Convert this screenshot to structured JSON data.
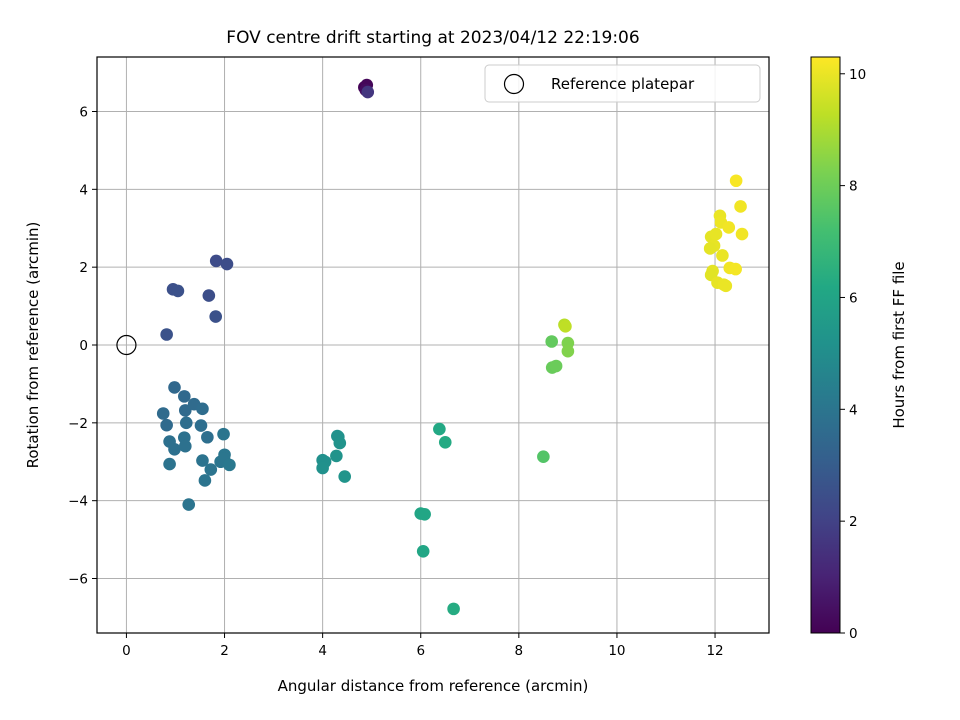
{
  "chart_data": {
    "type": "scatter",
    "title": "FOV centre drift starting at 2023/04/12 22:19:06",
    "xlabel": "Angular distance from reference (arcmin)",
    "ylabel": "Rotation from reference (arcmin)",
    "xlim": [
      -0.6,
      13.1
    ],
    "ylim": [
      -7.4,
      7.4
    ],
    "xticks": [
      0,
      2,
      4,
      6,
      8,
      10,
      12
    ],
    "yticks": [
      -6,
      -4,
      -2,
      0,
      2,
      4,
      6
    ],
    "grid": true,
    "legend": {
      "position": "top-right",
      "entries": [
        "Reference platepar"
      ]
    },
    "reference_point": {
      "x": 0,
      "y": 0,
      "label": "Reference platepar"
    },
    "colorbar": {
      "label": "Hours from first FF file",
      "range": [
        0,
        10.3
      ],
      "ticks": [
        0,
        2,
        4,
        6,
        8,
        10
      ],
      "colormap": "viridis"
    },
    "points": [
      {
        "x": 4.85,
        "y": 6.62,
        "h": 0.05
      },
      {
        "x": 4.9,
        "y": 6.68,
        "h": 0.15
      },
      {
        "x": 4.88,
        "y": 6.55,
        "h": 0.3
      },
      {
        "x": 4.92,
        "y": 6.5,
        "h": 1.6
      },
      {
        "x": 0.82,
        "y": 0.27,
        "h": 2.6
      },
      {
        "x": 0.95,
        "y": 1.43,
        "h": 2.5
      },
      {
        "x": 1.05,
        "y": 1.39,
        "h": 2.55
      },
      {
        "x": 1.68,
        "y": 1.27,
        "h": 2.45
      },
      {
        "x": 1.82,
        "y": 0.73,
        "h": 2.55
      },
      {
        "x": 1.83,
        "y": 2.16,
        "h": 2.35
      },
      {
        "x": 2.05,
        "y": 2.08,
        "h": 2.4
      },
      {
        "x": 0.98,
        "y": -1.09,
        "h": 3.45
      },
      {
        "x": 0.75,
        "y": -1.76,
        "h": 3.6
      },
      {
        "x": 0.82,
        "y": -2.06,
        "h": 3.55
      },
      {
        "x": 1.18,
        "y": -1.32,
        "h": 3.5
      },
      {
        "x": 1.2,
        "y": -1.68,
        "h": 3.55
      },
      {
        "x": 1.38,
        "y": -1.52,
        "h": 3.6
      },
      {
        "x": 1.55,
        "y": -1.64,
        "h": 3.65
      },
      {
        "x": 1.22,
        "y": -2.0,
        "h": 3.7
      },
      {
        "x": 1.52,
        "y": -2.07,
        "h": 3.7
      },
      {
        "x": 1.65,
        "y": -2.37,
        "h": 3.75
      },
      {
        "x": 0.88,
        "y": -2.48,
        "h": 3.8
      },
      {
        "x": 0.98,
        "y": -2.68,
        "h": 3.8
      },
      {
        "x": 1.18,
        "y": -2.38,
        "h": 3.85
      },
      {
        "x": 1.2,
        "y": -2.6,
        "h": 3.85
      },
      {
        "x": 0.88,
        "y": -3.06,
        "h": 3.9
      },
      {
        "x": 1.55,
        "y": -2.97,
        "h": 3.9
      },
      {
        "x": 1.72,
        "y": -3.2,
        "h": 3.95
      },
      {
        "x": 1.6,
        "y": -3.48,
        "h": 3.95
      },
      {
        "x": 1.92,
        "y": -3.0,
        "h": 4.0
      },
      {
        "x": 1.98,
        "y": -2.29,
        "h": 4.0
      },
      {
        "x": 2.0,
        "y": -2.82,
        "h": 4.05
      },
      {
        "x": 1.99,
        "y": -2.92,
        "h": 4.05
      },
      {
        "x": 2.1,
        "y": -3.08,
        "h": 4.1
      },
      {
        "x": 1.27,
        "y": -4.1,
        "h": 3.95
      },
      {
        "x": 4.0,
        "y": -2.96,
        "h": 5.1
      },
      {
        "x": 4.05,
        "y": -3.0,
        "h": 5.1
      },
      {
        "x": 4.0,
        "y": -3.16,
        "h": 5.15
      },
      {
        "x": 4.3,
        "y": -2.34,
        "h": 5.2
      },
      {
        "x": 4.32,
        "y": -2.36,
        "h": 5.2
      },
      {
        "x": 4.35,
        "y": -2.52,
        "h": 5.25
      },
      {
        "x": 4.28,
        "y": -2.85,
        "h": 5.25
      },
      {
        "x": 4.45,
        "y": -3.38,
        "h": 5.3
      },
      {
        "x": 6.38,
        "y": -2.16,
        "h": 6.2
      },
      {
        "x": 6.5,
        "y": -2.5,
        "h": 6.25
      },
      {
        "x": 6.0,
        "y": -4.33,
        "h": 6.05
      },
      {
        "x": 6.08,
        "y": -4.35,
        "h": 6.1
      },
      {
        "x": 6.05,
        "y": -5.3,
        "h": 6.1
      },
      {
        "x": 6.67,
        "y": -6.78,
        "h": 6.3
      },
      {
        "x": 8.5,
        "y": -2.87,
        "h": 7.5
      },
      {
        "x": 8.67,
        "y": 0.09,
        "h": 7.8
      },
      {
        "x": 8.68,
        "y": -0.58,
        "h": 7.9
      },
      {
        "x": 8.76,
        "y": -0.54,
        "h": 7.95
      },
      {
        "x": 8.93,
        "y": 0.52,
        "h": 9.2
      },
      {
        "x": 8.95,
        "y": 0.48,
        "h": 9.3
      },
      {
        "x": 9.0,
        "y": 0.05,
        "h": 8.3
      },
      {
        "x": 9.0,
        "y": -0.16,
        "h": 8.35
      },
      {
        "x": 12.43,
        "y": 4.22,
        "h": 10.2
      },
      {
        "x": 12.52,
        "y": 3.56,
        "h": 10.1
      },
      {
        "x": 12.1,
        "y": 3.32,
        "h": 10.0
      },
      {
        "x": 12.12,
        "y": 3.15,
        "h": 10.05
      },
      {
        "x": 12.28,
        "y": 3.02,
        "h": 10.1
      },
      {
        "x": 12.55,
        "y": 2.85,
        "h": 10.1
      },
      {
        "x": 11.92,
        "y": 2.78,
        "h": 9.9
      },
      {
        "x": 12.02,
        "y": 2.85,
        "h": 9.95
      },
      {
        "x": 11.98,
        "y": 2.55,
        "h": 9.95
      },
      {
        "x": 11.9,
        "y": 2.48,
        "h": 9.9
      },
      {
        "x": 12.15,
        "y": 2.3,
        "h": 10.0
      },
      {
        "x": 12.3,
        "y": 1.98,
        "h": 10.1
      },
      {
        "x": 12.42,
        "y": 1.95,
        "h": 10.15
      },
      {
        "x": 11.95,
        "y": 1.9,
        "h": 9.9
      },
      {
        "x": 11.92,
        "y": 1.8,
        "h": 9.85
      },
      {
        "x": 12.05,
        "y": 1.6,
        "h": 9.95
      },
      {
        "x": 12.18,
        "y": 1.55,
        "h": 10.0
      },
      {
        "x": 12.22,
        "y": 1.52,
        "h": 10.0
      }
    ]
  }
}
